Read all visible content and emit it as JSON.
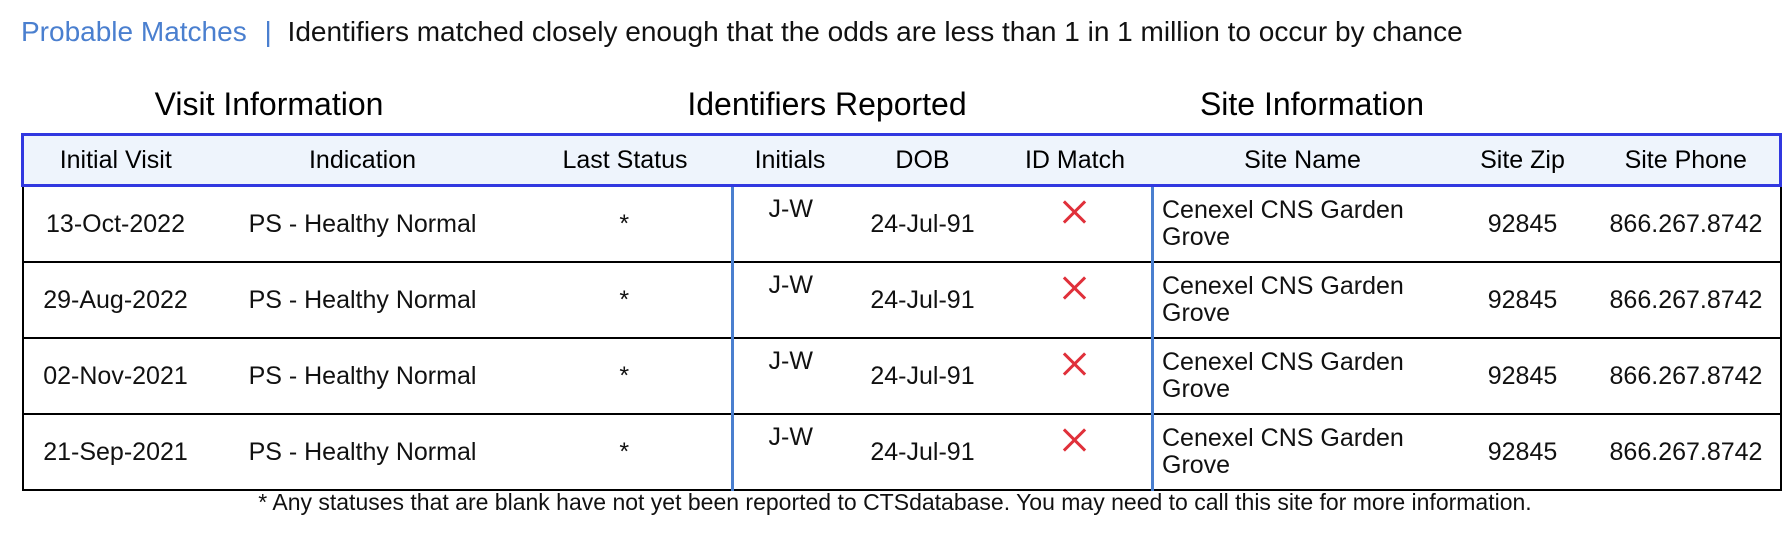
{
  "header": {
    "probable": "Probable",
    "matches": "Matches",
    "separator": "|",
    "description": "Identifiers matched closely enough that the odds are less than 1 in 1 million to occur by chance"
  },
  "groups": {
    "visit": "Visit Information",
    "identifiers": "Identifiers Reported",
    "site": "Site Information"
  },
  "columns": [
    "Initial Visit",
    "Indication",
    "Last Status",
    "Initials",
    "DOB",
    "ID Match",
    "Site Name",
    "Site Zip",
    "Site Phone"
  ],
  "rows": [
    {
      "initial_visit": "13-Oct-2022",
      "indication": "PS - Healthy Normal",
      "last_status": "*",
      "initials": "J-W",
      "dob": "24-Jul-91",
      "id_match_icon": "x-icon",
      "site_name": "Cenexel CNS Garden Grove",
      "site_zip": "92845",
      "site_phone": "866.267.8742"
    },
    {
      "initial_visit": "29-Aug-2022",
      "indication": "PS - Healthy Normal",
      "last_status": "*",
      "initials": "J-W",
      "dob": "24-Jul-91",
      "id_match_icon": "x-icon",
      "site_name": "Cenexel CNS Garden Grove",
      "site_zip": "92845",
      "site_phone": "866.267.8742"
    },
    {
      "initial_visit": "02-Nov-2021",
      "indication": "PS - Healthy Normal",
      "last_status": "*",
      "initials": "J-W",
      "dob": "24-Jul-91",
      "id_match_icon": "x-icon",
      "site_name": "Cenexel CNS Garden Grove",
      "site_zip": "92845",
      "site_phone": "866.267.8742"
    },
    {
      "initial_visit": "21-Sep-2021",
      "indication": "PS - Healthy Normal",
      "last_status": "*",
      "initials": "J-W",
      "dob": "24-Jul-91",
      "id_match_icon": "x-icon",
      "site_name": "Cenexel CNS Garden Grove",
      "site_zip": "92845",
      "site_phone": "866.267.8742"
    }
  ],
  "footnote": "* Any statuses that are blank have not yet been reported to CTSdatabase. You may need to call this site for more information.",
  "colors": {
    "link_blue": "#4a7fcf",
    "header_border": "#3138e0",
    "header_bg": "#eef4fc",
    "mismatch_red": "#e0303a"
  }
}
